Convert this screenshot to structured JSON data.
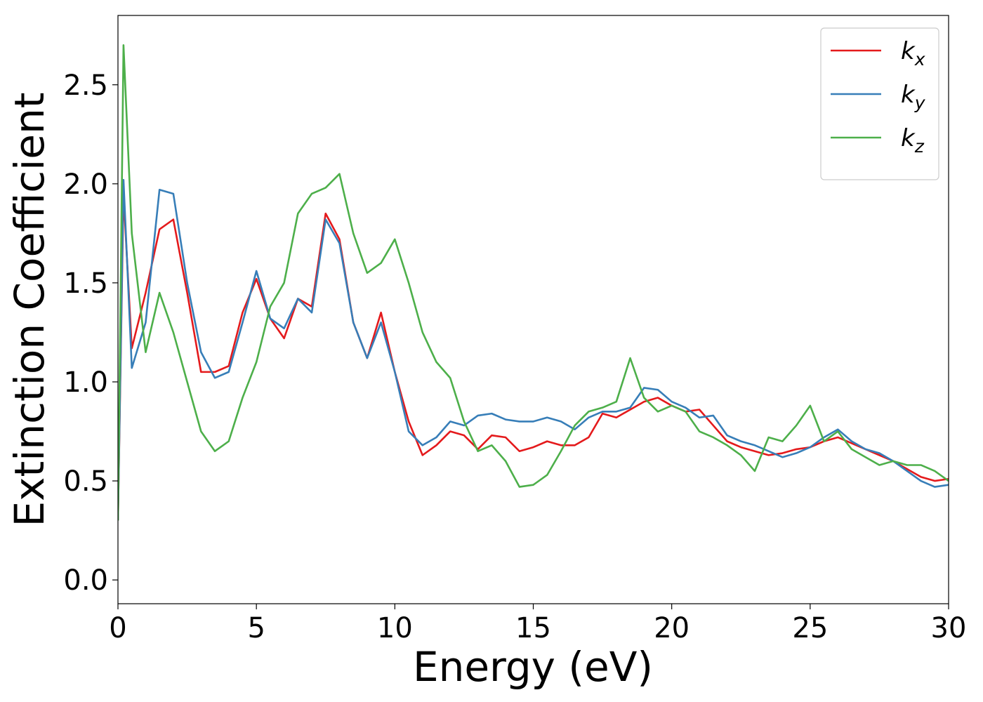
{
  "chart_data": {
    "type": "line",
    "xlabel": "Energy (eV)",
    "ylabel": "Extinction Coefficient",
    "x": [
      0,
      0.2,
      0.5,
      1,
      1.5,
      2,
      2.5,
      3,
      3.5,
      4,
      4.5,
      5,
      5.5,
      6,
      6.5,
      7,
      7.5,
      8,
      8.5,
      9,
      9.5,
      10,
      10.5,
      11,
      11.5,
      12,
      12.5,
      13,
      13.5,
      14,
      14.5,
      15,
      15.5,
      16,
      16.5,
      17,
      17.5,
      18,
      18.5,
      19,
      19.5,
      20,
      20.5,
      21,
      21.5,
      22,
      22.5,
      23,
      23.5,
      24,
      24.5,
      25,
      25.5,
      26,
      26.5,
      27,
      27.5,
      28,
      28.5,
      29,
      29.5,
      30
    ],
    "series": [
      {
        "name": "kx",
        "color": "#e41a1c",
        "values": [
          0.3,
          1.95,
          1.17,
          1.45,
          1.77,
          1.82,
          1.45,
          1.05,
          1.05,
          1.08,
          1.35,
          1.52,
          1.32,
          1.22,
          1.42,
          1.38,
          1.85,
          1.72,
          1.3,
          1.12,
          1.35,
          1.05,
          0.8,
          0.63,
          0.68,
          0.75,
          0.73,
          0.66,
          0.73,
          0.72,
          0.65,
          0.67,
          0.7,
          0.68,
          0.68,
          0.72,
          0.84,
          0.82,
          0.86,
          0.9,
          0.92,
          0.88,
          0.85,
          0.86,
          0.78,
          0.7,
          0.67,
          0.65,
          0.63,
          0.64,
          0.66,
          0.67,
          0.7,
          0.72,
          0.69,
          0.66,
          0.63,
          0.6,
          0.56,
          0.52,
          0.5,
          0.51
        ]
      },
      {
        "name": "ky",
        "color": "#377eb8",
        "values": [
          0.3,
          2.02,
          1.07,
          1.3,
          1.97,
          1.95,
          1.5,
          1.15,
          1.02,
          1.05,
          1.3,
          1.56,
          1.32,
          1.27,
          1.42,
          1.35,
          1.82,
          1.7,
          1.3,
          1.12,
          1.3,
          1.05,
          0.75,
          0.68,
          0.72,
          0.8,
          0.78,
          0.83,
          0.84,
          0.81,
          0.8,
          0.8,
          0.82,
          0.8,
          0.76,
          0.82,
          0.85,
          0.85,
          0.87,
          0.97,
          0.96,
          0.9,
          0.87,
          0.82,
          0.83,
          0.73,
          0.7,
          0.68,
          0.65,
          0.62,
          0.64,
          0.67,
          0.72,
          0.76,
          0.7,
          0.66,
          0.64,
          0.6,
          0.55,
          0.5,
          0.47,
          0.48
        ]
      },
      {
        "name": "kz",
        "color": "#4daf4a",
        "values": [
          0.3,
          2.7,
          1.75,
          1.15,
          1.45,
          1.25,
          1.0,
          0.75,
          0.65,
          0.7,
          0.92,
          1.1,
          1.38,
          1.5,
          1.85,
          1.95,
          1.98,
          2.05,
          1.75,
          1.55,
          1.6,
          1.72,
          1.5,
          1.25,
          1.1,
          1.02,
          0.8,
          0.65,
          0.68,
          0.6,
          0.47,
          0.48,
          0.53,
          0.65,
          0.78,
          0.85,
          0.87,
          0.9,
          1.12,
          0.92,
          0.85,
          0.88,
          0.85,
          0.75,
          0.72,
          0.68,
          0.63,
          0.55,
          0.72,
          0.7,
          0.78,
          0.88,
          0.7,
          0.75,
          0.66,
          0.62,
          0.58,
          0.6,
          0.58,
          0.58,
          0.55,
          0.5
        ]
      }
    ],
    "xlim": [
      0,
      30
    ],
    "xticks": [
      0,
      5,
      10,
      15,
      20,
      25,
      30
    ],
    "ylim": [
      -0.12,
      2.85
    ],
    "yticks": [
      {
        "value": 0,
        "label": "0.0"
      },
      0.5,
      {
        "value": 1,
        "label": "1.0"
      },
      1.5,
      {
        "value": 2,
        "label": "2.0"
      },
      2.5
    ],
    "legend": "upper right",
    "grid": false
  }
}
